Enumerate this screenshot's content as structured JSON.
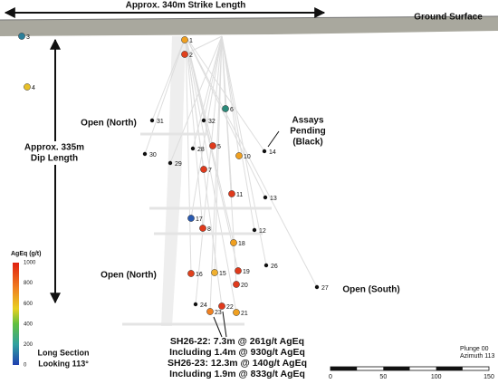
{
  "header": {
    "strike_label": "Approx. 340m Strike Length",
    "ground_label": "Ground Surface",
    "dip_label": [
      "Approx. 335m",
      "Dip Length"
    ]
  },
  "annotations": {
    "open_north_upper": "Open (North)",
    "open_north_lower": "Open (North)",
    "open_south": "Open (South)",
    "assays_pending": [
      "Assays",
      "Pending",
      "(Black)"
    ]
  },
  "points": [
    {
      "label": "3",
      "color": "#2a7f9a"
    },
    {
      "label": "1",
      "color": "#f0a020"
    },
    {
      "label": "2",
      "color": "#e0401c"
    },
    {
      "label": "4",
      "color": "#e8c028"
    },
    {
      "label": "6",
      "color": "#2a8a7a"
    },
    {
      "label": "31",
      "color": "#111111"
    },
    {
      "label": "32",
      "color": "#111111"
    },
    {
      "label": "5",
      "color": "#e03a1c"
    },
    {
      "label": "28",
      "color": "#111111"
    },
    {
      "label": "30",
      "color": "#111111"
    },
    {
      "label": "10",
      "color": "#f0a020"
    },
    {
      "label": "14",
      "color": "#111111"
    },
    {
      "label": "29",
      "color": "#111111"
    },
    {
      "label": "7",
      "color": "#e03a1c"
    },
    {
      "label": "11",
      "color": "#e03a1c"
    },
    {
      "label": "13",
      "color": "#111111"
    },
    {
      "label": "17",
      "color": "#2a5ab0"
    },
    {
      "label": "8",
      "color": "#e03a1c"
    },
    {
      "label": "12",
      "color": "#111111"
    },
    {
      "label": "18",
      "color": "#f0a020"
    },
    {
      "label": "26",
      "color": "#111111"
    },
    {
      "label": "16",
      "color": "#e0401c"
    },
    {
      "label": "15",
      "color": "#f0b030"
    },
    {
      "label": "19",
      "color": "#e03a1c"
    },
    {
      "label": "20",
      "color": "#e03a1c"
    },
    {
      "label": "27",
      "color": "#111111"
    },
    {
      "label": "24",
      "color": "#111111"
    },
    {
      "label": "22",
      "color": "#e03a1c"
    },
    {
      "label": "23",
      "color": "#f08020"
    },
    {
      "label": "21",
      "color": "#f0a020"
    }
  ],
  "legend": {
    "title": "AgEq (g/t)",
    "ticks": [
      1000,
      800,
      600,
      400,
      200,
      0
    ]
  },
  "view": [
    "Long Section",
    "Looking 113°"
  ],
  "results": [
    "SH26-22: 7.3m @ 261g/t AgEq",
    "Including 1.4m @ 930g/t AgEq",
    "SH26-23: 12.3m @ 140g/t AgEq",
    "Including 1.9m @ 833g/t AgEq"
  ],
  "orientation": [
    "Plunge 00",
    "Azimuth 113"
  ],
  "scale_bar": [
    0,
    50,
    100,
    150
  ]
}
